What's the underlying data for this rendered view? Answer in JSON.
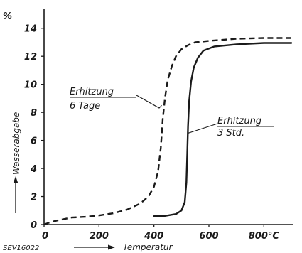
{
  "chart_data": {
    "type": "line",
    "title": "",
    "xlabel": "Temperatur",
    "ylabel": "Wasserabgabe",
    "y_unit": "%",
    "xlim": [
      0,
      900
    ],
    "ylim": [
      0,
      15
    ],
    "x_ticks": [
      {
        "value": 0,
        "label": "0"
      },
      {
        "value": 200,
        "label": "200"
      },
      {
        "value": 400,
        "label": "400"
      },
      {
        "value": 600,
        "label": "600"
      },
      {
        "value": 800,
        "label": "800°C"
      }
    ],
    "y_ticks": [
      {
        "value": 0,
        "label": "0"
      },
      {
        "value": 2,
        "label": "2"
      },
      {
        "value": 4,
        "label": "4"
      },
      {
        "value": 6,
        "label": "6"
      },
      {
        "value": 8,
        "label": "8"
      },
      {
        "value": 10,
        "label": "10"
      },
      {
        "value": 12,
        "label": "12"
      },
      {
        "value": 14,
        "label": "14"
      }
    ],
    "grid": false,
    "legend": "none",
    "series": [
      {
        "style": "dashed",
        "color": "#1a1a1a",
        "points": [
          [
            0,
            0
          ],
          [
            20,
            0.15
          ],
          [
            50,
            0.3
          ],
          [
            100,
            0.5
          ],
          [
            150,
            0.55
          ],
          [
            200,
            0.65
          ],
          [
            250,
            0.8
          ],
          [
            300,
            1.05
          ],
          [
            350,
            1.5
          ],
          [
            380,
            2.0
          ],
          [
            400,
            2.7
          ],
          [
            415,
            3.8
          ],
          [
            425,
            5.5
          ],
          [
            432,
            7.5
          ],
          [
            440,
            9.0
          ],
          [
            450,
            10.3
          ],
          [
            465,
            11.3
          ],
          [
            480,
            12.0
          ],
          [
            500,
            12.5
          ],
          [
            525,
            12.8
          ],
          [
            550,
            13.0
          ],
          [
            600,
            13.1
          ],
          [
            700,
            13.25
          ],
          [
            800,
            13.3
          ],
          [
            900,
            13.3
          ]
        ]
      },
      {
        "style": "solid",
        "color": "#1a1a1a",
        "points": [
          [
            400,
            0.6
          ],
          [
            440,
            0.62
          ],
          [
            480,
            0.75
          ],
          [
            500,
            1.0
          ],
          [
            512,
            1.6
          ],
          [
            518,
            3.0
          ],
          [
            521,
            5.0
          ],
          [
            524,
            7.0
          ],
          [
            528,
            8.8
          ],
          [
            535,
            10.2
          ],
          [
            545,
            11.2
          ],
          [
            560,
            11.9
          ],
          [
            580,
            12.4
          ],
          [
            620,
            12.7
          ],
          [
            700,
            12.85
          ],
          [
            800,
            12.95
          ],
          [
            900,
            12.95
          ]
        ]
      }
    ],
    "annotations": [
      {
        "id": "dashed",
        "line1": "Erhitzung",
        "line2": "6 Tage",
        "target": [
          428,
          8.5
        ]
      },
      {
        "id": "solid",
        "line1": "Erhitzung",
        "line2": "3 Std.",
        "target": [
          522,
          6.5
        ]
      }
    ],
    "figure_id": "SEV16022"
  }
}
